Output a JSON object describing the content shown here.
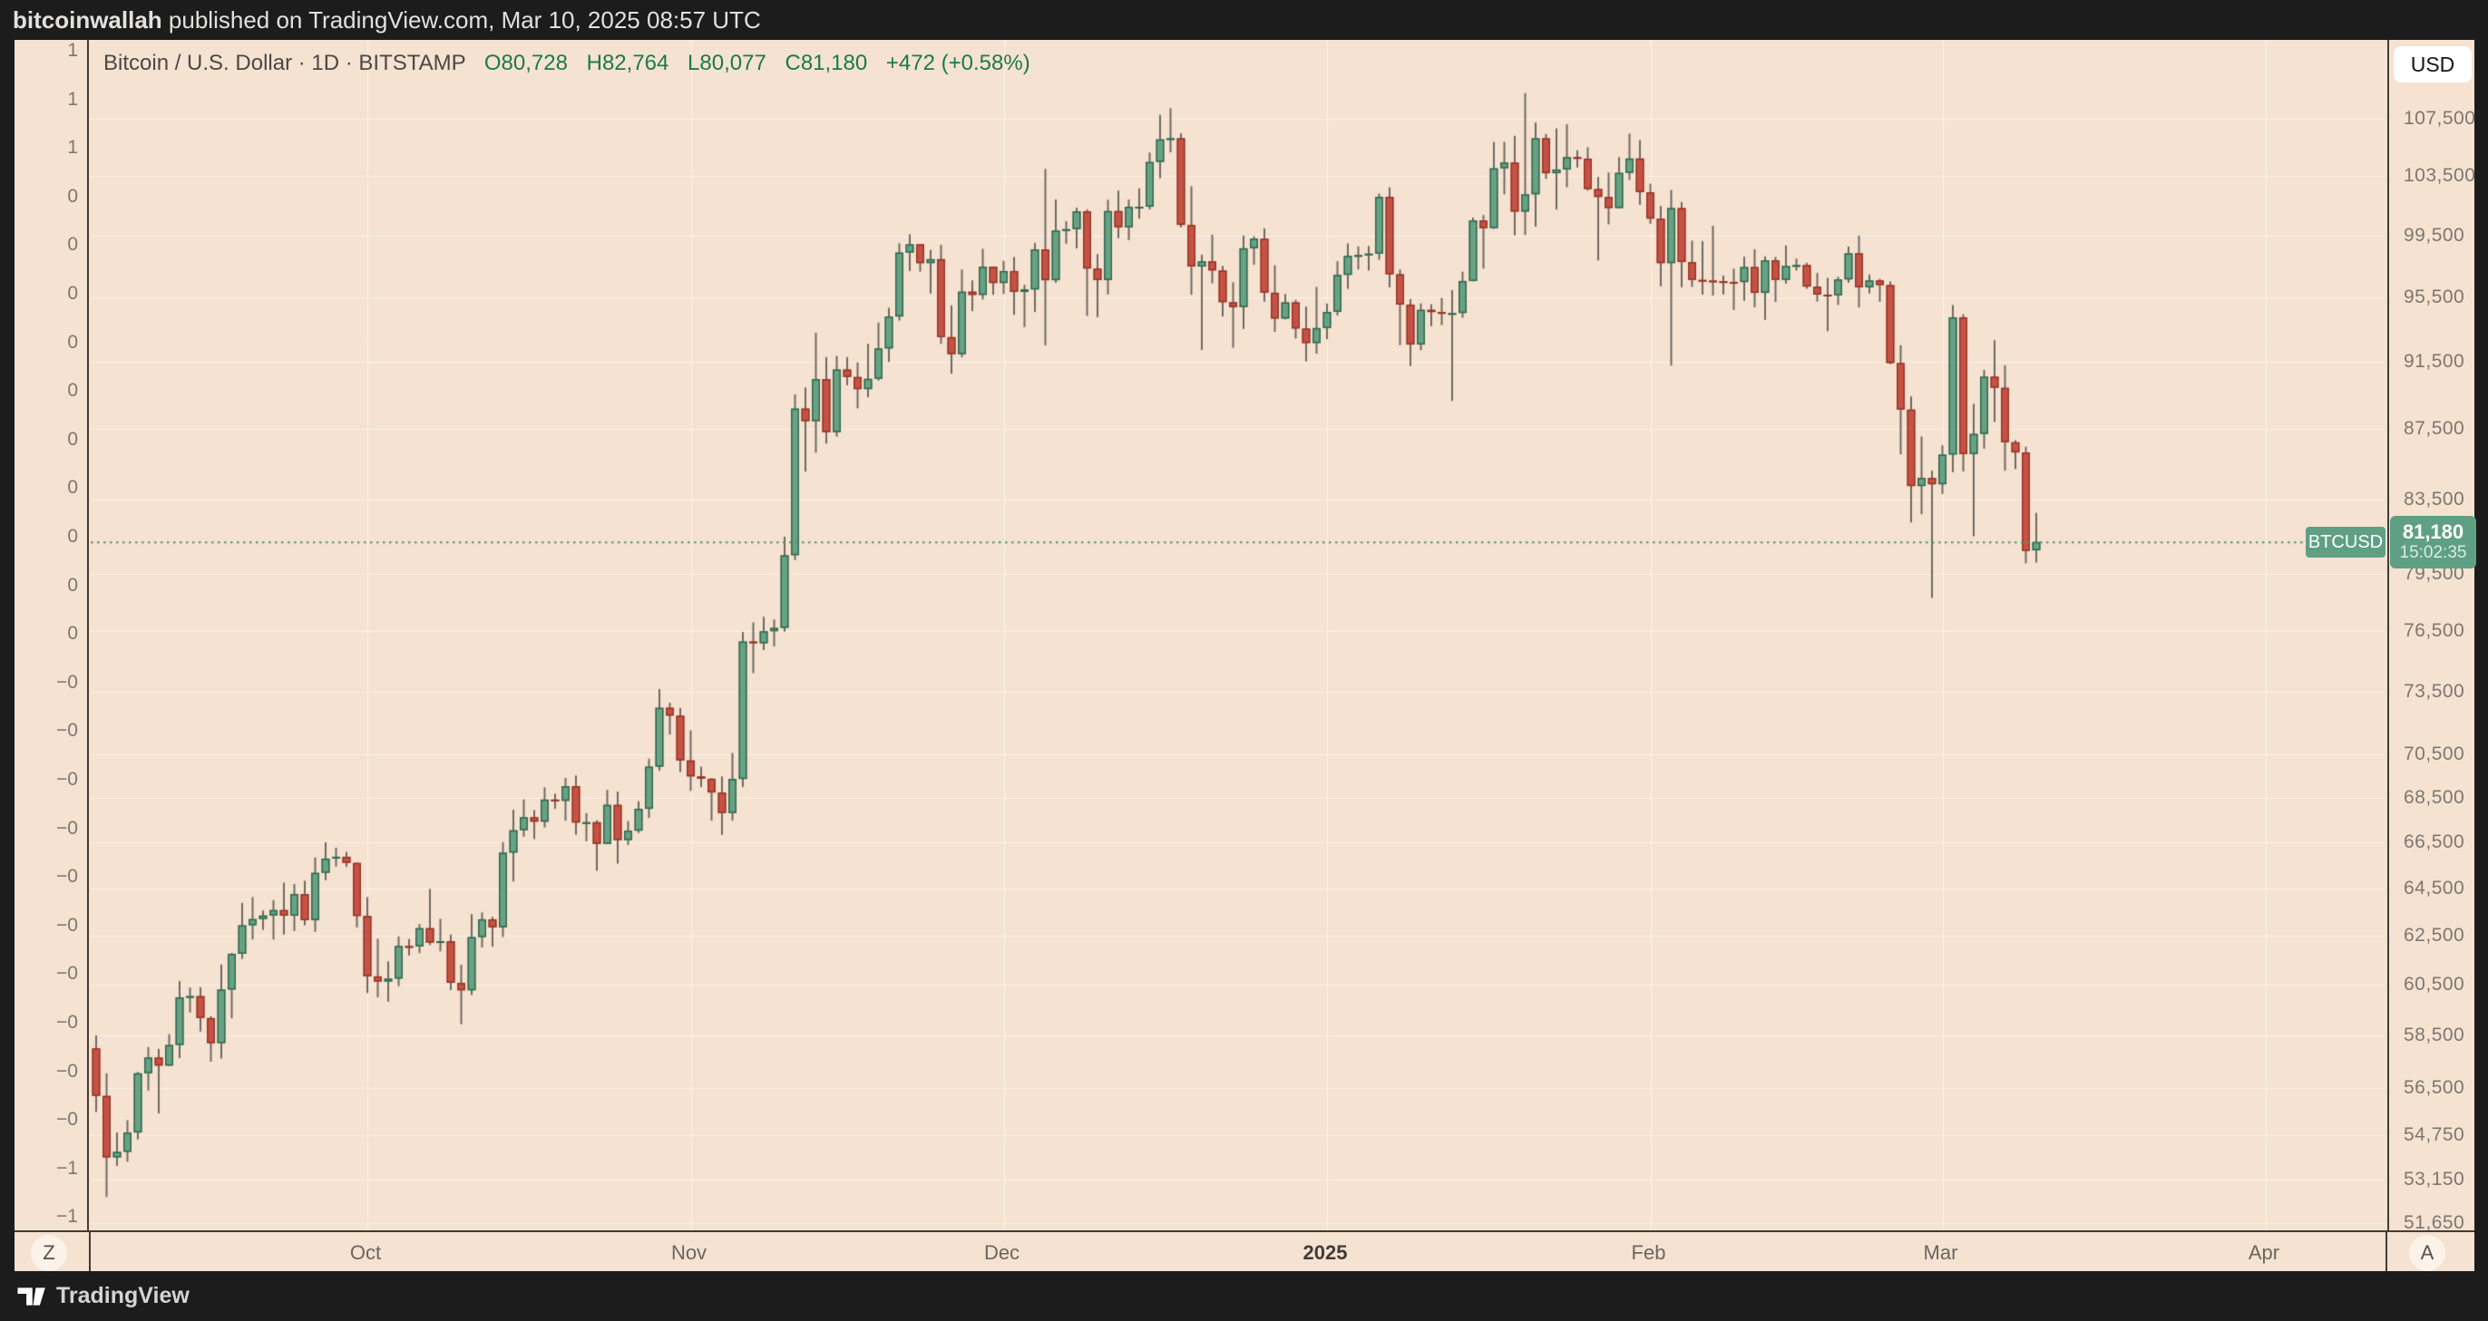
{
  "attribution": {
    "username": "bitcoinwallah",
    "text": "published on TradingView.com, Mar 10, 2025 08:57 UTC"
  },
  "header": {
    "title": "Bitcoin / U.S. Dollar · 1D · BITSTAMP",
    "ohlc": {
      "open": "O80,728",
      "high": "H82,764",
      "low": "L80,077",
      "close": "C81,180",
      "change": "+472 (+0.58%)"
    }
  },
  "price_scale": {
    "currency": "USD",
    "ticks": [
      {
        "label": "107,500",
        "value": 107500
      },
      {
        "label": "103,500",
        "value": 103500
      },
      {
        "label": "99,500",
        "value": 99500
      },
      {
        "label": "95,500",
        "value": 95500
      },
      {
        "label": "91,500",
        "value": 91500
      },
      {
        "label": "87,500",
        "value": 87500
      },
      {
        "label": "83,500",
        "value": 83500
      },
      {
        "label": "79,500",
        "value": 79500
      },
      {
        "label": "76,500",
        "value": 76500
      },
      {
        "label": "73,500",
        "value": 73500
      },
      {
        "label": "70,500",
        "value": 70500
      },
      {
        "label": "68,500",
        "value": 68500
      },
      {
        "label": "66,500",
        "value": 66500
      },
      {
        "label": "64,500",
        "value": 64500
      },
      {
        "label": "62,500",
        "value": 62500
      },
      {
        "label": "60,500",
        "value": 60500
      },
      {
        "label": "58,500",
        "value": 58500
      },
      {
        "label": "56,500",
        "value": 56500
      },
      {
        "label": "54,750",
        "value": 54750
      },
      {
        "label": "53,150",
        "value": 53150
      },
      {
        "label": "51,650",
        "value": 51650
      }
    ]
  },
  "left_scale": {
    "labels": [
      "1",
      "1",
      "1",
      "0",
      "0",
      "0",
      "0",
      "0",
      "0",
      "0",
      "0",
      "0",
      "0",
      "−0",
      "−0",
      "−0",
      "−0",
      "−0",
      "−0",
      "−0",
      "−0",
      "−0",
      "−0",
      "−1",
      "−1"
    ]
  },
  "time_scale": {
    "ticks": [
      {
        "label": "Oct",
        "day_offset": 26,
        "emphasis": false
      },
      {
        "label": "Nov",
        "day_offset": 57,
        "emphasis": false
      },
      {
        "label": "Dec",
        "day_offset": 87,
        "emphasis": false
      },
      {
        "label": "2025",
        "day_offset": 118,
        "emphasis": true
      },
      {
        "label": "Feb",
        "day_offset": 149,
        "emphasis": false
      },
      {
        "label": "Mar",
        "day_offset": 177,
        "emphasis": false
      },
      {
        "label": "Apr",
        "day_offset": 208,
        "emphasis": false
      }
    ]
  },
  "buttons": {
    "zoom": "Z",
    "auto": "A"
  },
  "price_line": {
    "symbol_label": "BTCUSD",
    "price_label": "81,180",
    "countdown": "15:02:35",
    "value": 81180
  },
  "footer": {
    "brand": "TradingView"
  },
  "colors": {
    "background": "#f6e2d1",
    "page_background": "#1c1c1c",
    "grid": "rgba(255,255,255,0.55)",
    "up_fill": "#69a184",
    "up_border": "#2d694e",
    "down_fill": "#c45346",
    "down_border": "#993426",
    "wick": "#6e6963",
    "price_line": "#4d9274",
    "badge": "#5fa085"
  },
  "chart_data": {
    "type": "candlestick",
    "title": "Bitcoin / U.S. Dollar · 1D · BITSTAMP",
    "symbol": "BTCUSD",
    "exchange": "BITSTAMP",
    "interval": "1D",
    "currency": "USD",
    "y_scale": "log",
    "y_ticks": [
      107500,
      103500,
      99500,
      95500,
      91500,
      87500,
      83500,
      79500,
      76500,
      73500,
      70500,
      68500,
      66500,
      64500,
      62500,
      60500,
      58500,
      56500,
      54750,
      53150,
      51650
    ],
    "x_tick_labels": [
      "Oct",
      "Nov",
      "Dec",
      "2025",
      "Feb",
      "Mar",
      "Apr"
    ],
    "last_price": 81180,
    "readout": {
      "open": 80728,
      "high": 82764,
      "low": 80077,
      "close": 81180,
      "change": 472,
      "change_pct": 0.58
    },
    "start_date": "2024-09-05",
    "candles": [
      [
        58000,
        58500,
        55600,
        56200
      ],
      [
        56200,
        57050,
        52550,
        53950
      ],
      [
        53950,
        54850,
        53650,
        54150
      ],
      [
        54150,
        55300,
        53800,
        54850
      ],
      [
        54850,
        57100,
        54600,
        57050
      ],
      [
        57050,
        58050,
        56400,
        57650
      ],
      [
        57650,
        57980,
        55550,
        57340
      ],
      [
        57340,
        58550,
        57320,
        58130
      ],
      [
        58130,
        60650,
        57630,
        60000
      ],
      [
        60000,
        60390,
        59400,
        60050
      ],
      [
        60050,
        60400,
        58650,
        59180
      ],
      [
        59180,
        59250,
        57490,
        58200
      ],
      [
        58200,
        61320,
        57610,
        60310
      ],
      [
        60310,
        61790,
        59170,
        61760
      ],
      [
        61760,
        63880,
        61550,
        62940
      ],
      [
        62940,
        64130,
        62350,
        63200
      ],
      [
        63200,
        63560,
        62750,
        63350
      ],
      [
        63350,
        64000,
        62350,
        63580
      ],
      [
        63580,
        64750,
        62550,
        63340
      ],
      [
        63340,
        64690,
        62700,
        64260
      ],
      [
        64260,
        64830,
        62940,
        63150
      ],
      [
        63150,
        65840,
        62670,
        65170
      ],
      [
        65170,
        66500,
        64850,
        65790
      ],
      [
        65790,
        66270,
        65440,
        65870
      ],
      [
        65870,
        66080,
        65430,
        65600
      ],
      [
        65600,
        65620,
        62850,
        63330
      ],
      [
        63330,
        64130,
        60170,
        60840
      ],
      [
        60840,
        62380,
        60000,
        60630
      ],
      [
        60630,
        61450,
        59830,
        60750
      ],
      [
        60750,
        62480,
        60450,
        62080
      ],
      [
        62080,
        62370,
        61690,
        62060
      ],
      [
        62060,
        62990,
        61790,
        62820
      ],
      [
        62820,
        64480,
        62120,
        62220
      ],
      [
        62220,
        63210,
        61860,
        62280
      ],
      [
        62280,
        62550,
        60290,
        60580
      ],
      [
        60580,
        61310,
        58940,
        60280
      ],
      [
        60280,
        63410,
        60090,
        62450
      ],
      [
        62450,
        63480,
        62020,
        63190
      ],
      [
        63190,
        63290,
        62050,
        62850
      ],
      [
        62850,
        66510,
        62450,
        66050
      ],
      [
        66050,
        67960,
        64800,
        67040
      ],
      [
        67040,
        68430,
        66750,
        67620
      ],
      [
        67620,
        67940,
        66650,
        67420
      ],
      [
        67420,
        68980,
        67160,
        68420
      ],
      [
        68420,
        68690,
        68000,
        68360
      ],
      [
        68360,
        69410,
        67470,
        69030
      ],
      [
        69030,
        69520,
        66840,
        67380
      ],
      [
        67380,
        67810,
        66550,
        67400
      ],
      [
        67400,
        67480,
        65260,
        66430
      ],
      [
        66430,
        68860,
        66420,
        68180
      ],
      [
        68180,
        68780,
        65570,
        66600
      ],
      [
        66600,
        67450,
        66390,
        67020
      ],
      [
        67020,
        68340,
        66920,
        68000
      ],
      [
        68000,
        70300,
        67590,
        69930
      ],
      [
        69930,
        73630,
        69740,
        72720
      ],
      [
        72720,
        72960,
        71430,
        72340
      ],
      [
        72340,
        72710,
        69680,
        70220
      ],
      [
        70220,
        71640,
        68810,
        69480
      ],
      [
        69480,
        69930,
        68990,
        69370
      ],
      [
        69370,
        69400,
        67470,
        68740
      ],
      [
        68740,
        69480,
        66830,
        67810
      ],
      [
        67810,
        70570,
        67470,
        69360
      ],
      [
        69360,
        76470,
        68990,
        75990
      ],
      [
        75990,
        76960,
        74410,
        75900
      ],
      [
        75900,
        77250,
        75560,
        76510
      ],
      [
        76510,
        77110,
        75740,
        76680
      ],
      [
        76680,
        81470,
        76490,
        80470
      ],
      [
        80470,
        89540,
        80210,
        88700
      ],
      [
        88700,
        89950,
        85060,
        87960
      ],
      [
        87960,
        93280,
        86140,
        90450
      ],
      [
        90450,
        91790,
        86660,
        87320
      ],
      [
        87320,
        91860,
        87060,
        91030
      ],
      [
        91030,
        91790,
        90080,
        90580
      ],
      [
        90580,
        91460,
        88710,
        89850
      ],
      [
        89850,
        92600,
        89370,
        90470
      ],
      [
        90470,
        93910,
        90360,
        92310
      ],
      [
        92310,
        94840,
        91490,
        94290
      ],
      [
        94290,
        98990,
        94030,
        98380
      ],
      [
        98380,
        99580,
        97180,
        98920
      ],
      [
        98920,
        98930,
        97140,
        97690
      ],
      [
        97690,
        98560,
        95740,
        97950
      ],
      [
        97950,
        98880,
        92590,
        93010
      ],
      [
        93010,
        94990,
        90780,
        91960
      ],
      [
        91960,
        97280,
        91780,
        95860
      ],
      [
        95860,
        96580,
        94630,
        95650
      ],
      [
        95650,
        98630,
        95360,
        97460
      ],
      [
        97460,
        97470,
        95660,
        96410
      ],
      [
        96410,
        97840,
        95710,
        97180
      ],
      [
        97180,
        98090,
        94390,
        95840
      ],
      [
        95840,
        96300,
        93630,
        96000
      ],
      [
        96000,
        99010,
        94570,
        98590
      ],
      [
        98590,
        104000,
        92500,
        96590
      ],
      [
        96590,
        101910,
        96420,
        99830
      ],
      [
        99830,
        100450,
        98960,
        99920
      ],
      [
        99920,
        101360,
        98650,
        101110
      ],
      [
        101110,
        101250,
        94330,
        97340
      ],
      [
        97340,
        98280,
        94250,
        96600
      ],
      [
        96600,
        101890,
        95680,
        101130
      ],
      [
        101130,
        102510,
        99320,
        100040
      ],
      [
        100040,
        101900,
        99200,
        101420
      ],
      [
        101420,
        102660,
        100620,
        101420
      ],
      [
        101420,
        105130,
        101230,
        104480
      ],
      [
        104480,
        107800,
        103360,
        106060
      ],
      [
        106060,
        108280,
        105150,
        106140
      ],
      [
        106140,
        106490,
        100040,
        100200
      ],
      [
        100200,
        102810,
        95660,
        97470
      ],
      [
        97470,
        98240,
        92220,
        97810
      ],
      [
        97810,
        99550,
        96390,
        97220
      ],
      [
        97220,
        97510,
        94290,
        95190
      ],
      [
        95190,
        96460,
        92350,
        94880
      ],
      [
        94880,
        99500,
        93520,
        98660
      ],
      [
        98660,
        99450,
        97590,
        99290
      ],
      [
        99290,
        99970,
        95220,
        95790
      ],
      [
        95790,
        97560,
        93330,
        94160
      ],
      [
        94160,
        95710,
        94110,
        95180
      ],
      [
        95180,
        95350,
        92930,
        93540
      ],
      [
        93540,
        94910,
        91520,
        92640
      ],
      [
        92640,
        96160,
        91990,
        93570
      ],
      [
        93570,
        95110,
        92880,
        94580
      ],
      [
        94580,
        97820,
        94360,
        96930
      ],
      [
        96930,
        98980,
        96040,
        98170
      ],
      [
        98170,
        98780,
        97280,
        98220
      ],
      [
        98220,
        98810,
        97210,
        98310
      ],
      [
        98310,
        102310,
        97910,
        102090
      ],
      [
        102090,
        102740,
        96130,
        96970
      ],
      [
        96970,
        97280,
        92510,
        95040
      ],
      [
        95040,
        95390,
        91240,
        92550
      ],
      [
        92550,
        95110,
        92200,
        94710
      ],
      [
        94710,
        95060,
        93680,
        94570
      ],
      [
        94570,
        95460,
        93760,
        94500
      ],
      [
        94500,
        95960,
        89150,
        94510
      ],
      [
        94510,
        97140,
        94210,
        96540
      ],
      [
        96540,
        100690,
        96520,
        100500
      ],
      [
        100500,
        100860,
        97340,
        99990
      ],
      [
        99990,
        105870,
        99940,
        104040
      ],
      [
        104040,
        105880,
        102260,
        104440
      ],
      [
        104440,
        106310,
        99510,
        101090
      ],
      [
        101090,
        109370,
        99530,
        102260
      ],
      [
        102260,
        107250,
        100090,
        106140
      ],
      [
        106140,
        106440,
        103320,
        103700
      ],
      [
        103700,
        106830,
        101230,
        103960
      ],
      [
        103960,
        107130,
        102740,
        104820
      ],
      [
        104820,
        105290,
        104100,
        104710
      ],
      [
        104710,
        105510,
        102510,
        102620
      ],
      [
        102620,
        103450,
        97870,
        102080
      ],
      [
        102080,
        103750,
        100240,
        101330
      ],
      [
        101330,
        104820,
        101320,
        103730
      ],
      [
        103730,
        106460,
        103240,
        104720
      ],
      [
        104720,
        106000,
        101550,
        102400
      ],
      [
        102400,
        102980,
        100270,
        100620
      ],
      [
        100620,
        101470,
        96200,
        97690
      ],
      [
        97690,
        102550,
        91270,
        101330
      ],
      [
        101330,
        101740,
        96140,
        97760
      ],
      [
        97760,
        99160,
        96160,
        96610
      ],
      [
        96610,
        99130,
        95670,
        96570
      ],
      [
        96570,
        100150,
        95610,
        96530
      ],
      [
        96530,
        96890,
        95680,
        96480
      ],
      [
        96480,
        97330,
        94700,
        96470
      ],
      [
        96470,
        98110,
        95280,
        97440
      ],
      [
        97440,
        98600,
        94870,
        95780
      ],
      [
        95780,
        98130,
        94080,
        97870
      ],
      [
        97870,
        98090,
        95210,
        96610
      ],
      [
        96610,
        98840,
        96370,
        97510
      ],
      [
        97510,
        97980,
        97210,
        97570
      ],
      [
        97570,
        97710,
        96050,
        96180
      ],
      [
        96180,
        97060,
        95230,
        95670
      ],
      [
        95670,
        96740,
        93380,
        95630
      ],
      [
        95630,
        96810,
        95020,
        96640
      ],
      [
        96640,
        98770,
        96430,
        98330
      ],
      [
        98330,
        99490,
        94860,
        96130
      ],
      [
        96130,
        96960,
        95740,
        96580
      ],
      [
        96580,
        96670,
        95220,
        96280
      ],
      [
        96280,
        96510,
        91350,
        91420
      ],
      [
        91420,
        92510,
        86040,
        88640
      ],
      [
        88640,
        89420,
        82240,
        84250
      ],
      [
        84250,
        87070,
        82690,
        84710
      ],
      [
        84710,
        85110,
        78220,
        84350
      ],
      [
        84350,
        86570,
        83810,
        86030
      ],
      [
        86030,
        95010,
        85030,
        94240
      ],
      [
        94240,
        94430,
        85070,
        86060
      ],
      [
        86060,
        88980,
        81490,
        87220
      ],
      [
        87220,
        91010,
        86370,
        90600
      ],
      [
        90600,
        92820,
        87920,
        89930
      ],
      [
        89930,
        91290,
        85110,
        86740
      ],
      [
        86740,
        86860,
        85210,
        86150
      ],
      [
        86150,
        86480,
        80040,
        80700
      ],
      [
        80728,
        82764,
        80077,
        81180
      ]
    ]
  }
}
